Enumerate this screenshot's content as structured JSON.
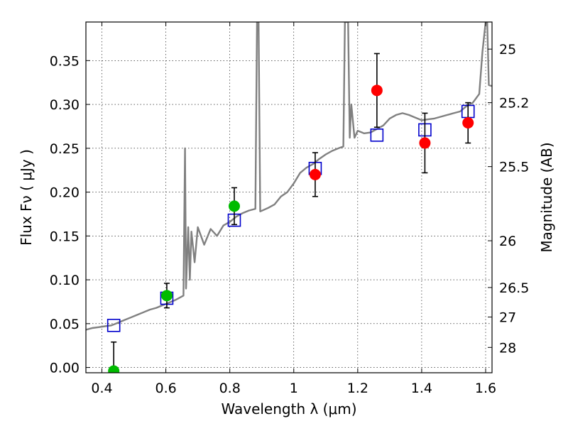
{
  "chart_data": {
    "type": "scatter",
    "xlabel": "Wavelength  λ (μm)",
    "ylabel": "Flux  Fν  ( μJy )",
    "y2label": "Magnitude (AB)",
    "xlim": [
      0.35,
      1.62
    ],
    "ylim": [
      -0.006,
      0.394
    ],
    "grid": true,
    "x_ticks": [
      {
        "value": 0.4,
        "label": "0.4"
      },
      {
        "value": 0.6,
        "label": "0.6"
      },
      {
        "value": 0.8,
        "label": "0.8"
      },
      {
        "value": 1.0,
        "label": "1"
      },
      {
        "value": 1.2,
        "label": "1.2"
      },
      {
        "value": 1.4,
        "label": "1.4"
      },
      {
        "value": 1.6,
        "label": "1.6"
      }
    ],
    "y_ticks": [
      {
        "value": 0.0,
        "label": "0.00"
      },
      {
        "value": 0.05,
        "label": "0.05"
      },
      {
        "value": 0.1,
        "label": "0.10"
      },
      {
        "value": 0.15,
        "label": "0.15"
      },
      {
        "value": 0.2,
        "label": "0.20"
      },
      {
        "value": 0.25,
        "label": "0.25"
      },
      {
        "value": 0.3,
        "label": "0.30"
      },
      {
        "value": 0.35,
        "label": "0.35"
      }
    ],
    "y2_ticks": [
      {
        "mag": 25,
        "label": "25"
      },
      {
        "mag": 25.2,
        "label": "25.2"
      },
      {
        "mag": 25.5,
        "label": "25.5"
      },
      {
        "mag": 26,
        "label": "26"
      },
      {
        "mag": 26.5,
        "label": "26.5"
      },
      {
        "mag": 27,
        "label": "27"
      },
      {
        "mag": 28,
        "label": "28"
      }
    ],
    "colors": {
      "spectrum": "#808080",
      "model": "#0000cc",
      "green": "#00bb00",
      "red": "#ff0000",
      "errorbar": "#000000"
    },
    "spectrum": [
      [
        0.35,
        0.043
      ],
      [
        0.37,
        0.045
      ],
      [
        0.39,
        0.046
      ],
      [
        0.41,
        0.047
      ],
      [
        0.43,
        0.048
      ],
      [
        0.45,
        0.051
      ],
      [
        0.47,
        0.054
      ],
      [
        0.49,
        0.057
      ],
      [
        0.51,
        0.06
      ],
      [
        0.53,
        0.063
      ],
      [
        0.55,
        0.066
      ],
      [
        0.57,
        0.068
      ],
      [
        0.59,
        0.071
      ],
      [
        0.61,
        0.074
      ],
      [
        0.63,
        0.077
      ],
      [
        0.645,
        0.08
      ],
      [
        0.655,
        0.082
      ],
      [
        0.66,
        0.25
      ],
      [
        0.663,
        0.09
      ],
      [
        0.67,
        0.16
      ],
      [
        0.675,
        0.1
      ],
      [
        0.68,
        0.155
      ],
      [
        0.69,
        0.12
      ],
      [
        0.7,
        0.16
      ],
      [
        0.72,
        0.14
      ],
      [
        0.74,
        0.158
      ],
      [
        0.76,
        0.15
      ],
      [
        0.78,
        0.162
      ],
      [
        0.8,
        0.166
      ],
      [
        0.82,
        0.172
      ],
      [
        0.84,
        0.176
      ],
      [
        0.86,
        0.179
      ],
      [
        0.88,
        0.181
      ],
      [
        0.885,
        0.394
      ],
      [
        0.89,
        0.394
      ],
      [
        0.895,
        0.178
      ],
      [
        0.92,
        0.182
      ],
      [
        0.94,
        0.186
      ],
      [
        0.96,
        0.195
      ],
      [
        0.98,
        0.2
      ],
      [
        1.0,
        0.21
      ],
      [
        1.02,
        0.222
      ],
      [
        1.04,
        0.228
      ],
      [
        1.06,
        0.232
      ],
      [
        1.08,
        0.238
      ],
      [
        1.1,
        0.243
      ],
      [
        1.12,
        0.247
      ],
      [
        1.14,
        0.25
      ],
      [
        1.155,
        0.252
      ],
      [
        1.16,
        0.394
      ],
      [
        1.17,
        0.394
      ],
      [
        1.175,
        0.262
      ],
      [
        1.18,
        0.3
      ],
      [
        1.19,
        0.262
      ],
      [
        1.2,
        0.27
      ],
      [
        1.22,
        0.267
      ],
      [
        1.24,
        0.268
      ],
      [
        1.26,
        0.272
      ],
      [
        1.28,
        0.276
      ],
      [
        1.3,
        0.284
      ],
      [
        1.32,
        0.288
      ],
      [
        1.34,
        0.29
      ],
      [
        1.36,
        0.288
      ],
      [
        1.38,
        0.285
      ],
      [
        1.4,
        0.282
      ],
      [
        1.42,
        0.283
      ],
      [
        1.44,
        0.284
      ],
      [
        1.46,
        0.286
      ],
      [
        1.48,
        0.288
      ],
      [
        1.5,
        0.29
      ],
      [
        1.52,
        0.292
      ],
      [
        1.54,
        0.298
      ],
      [
        1.56,
        0.302
      ],
      [
        1.58,
        0.312
      ],
      [
        1.59,
        0.36
      ],
      [
        1.6,
        0.394
      ],
      [
        1.605,
        0.394
      ],
      [
        1.61,
        0.322
      ],
      [
        1.62,
        0.321
      ]
    ],
    "model_points": [
      {
        "x": 0.437,
        "y": 0.048
      },
      {
        "x": 0.603,
        "y": 0.079
      },
      {
        "x": 0.814,
        "y": 0.168
      },
      {
        "x": 1.067,
        "y": 0.227
      },
      {
        "x": 1.26,
        "y": 0.265
      },
      {
        "x": 1.41,
        "y": 0.271
      },
      {
        "x": 1.545,
        "y": 0.292
      }
    ],
    "observed": [
      {
        "x": 0.437,
        "y": -0.004,
        "err": 0.033,
        "color": "green"
      },
      {
        "x": 0.603,
        "y": 0.082,
        "err": 0.014,
        "color": "green"
      },
      {
        "x": 0.814,
        "y": 0.184,
        "err": 0.021,
        "color": "green"
      },
      {
        "x": 1.067,
        "y": 0.22,
        "err": 0.025,
        "color": "red"
      },
      {
        "x": 1.26,
        "y": 0.316,
        "err": 0.042,
        "color": "red"
      },
      {
        "x": 1.41,
        "y": 0.256,
        "err": 0.034,
        "color": "red"
      },
      {
        "x": 1.545,
        "y": 0.279,
        "err": 0.023,
        "color": "red"
      }
    ]
  }
}
